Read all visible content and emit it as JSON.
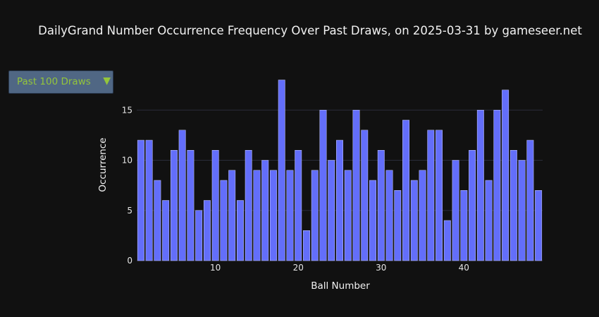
{
  "dropdown": {
    "selected": "Past 100 Draws",
    "arrow_glyph": "▼"
  },
  "chart_data": {
    "type": "bar",
    "title": "DailyGrand Number Occurrence Frequency Over Past Draws, on 2025-03-31 by gameseer.net",
    "xlabel": "Ball Number",
    "ylabel": "Occurrence",
    "x": [
      1,
      2,
      3,
      4,
      5,
      6,
      7,
      8,
      9,
      10,
      11,
      12,
      13,
      14,
      15,
      16,
      17,
      18,
      19,
      20,
      21,
      22,
      23,
      24,
      25,
      26,
      27,
      28,
      29,
      30,
      31,
      32,
      33,
      34,
      35,
      36,
      37,
      38,
      39,
      40,
      41,
      42,
      43,
      44,
      45,
      46,
      47,
      48,
      49
    ],
    "values": [
      12,
      12,
      8,
      6,
      11,
      13,
      11,
      5,
      6,
      11,
      8,
      9,
      6,
      11,
      9,
      10,
      9,
      18,
      9,
      11,
      3,
      9,
      15,
      10,
      12,
      9,
      15,
      13,
      8,
      11,
      9,
      7,
      14,
      8,
      9,
      13,
      13,
      4,
      10,
      7,
      11,
      15,
      8,
      15,
      17,
      11,
      10,
      12,
      7
    ],
    "x_ticks": [
      10,
      20,
      30,
      40
    ],
    "y_ticks": [
      0,
      5,
      10,
      15
    ],
    "xlim": [
      0.5,
      49.5
    ],
    "ylim": [
      0,
      18.95
    ],
    "bar_color": "#636efa",
    "bar_edge_color": "#c8ccff",
    "grid": true
  }
}
